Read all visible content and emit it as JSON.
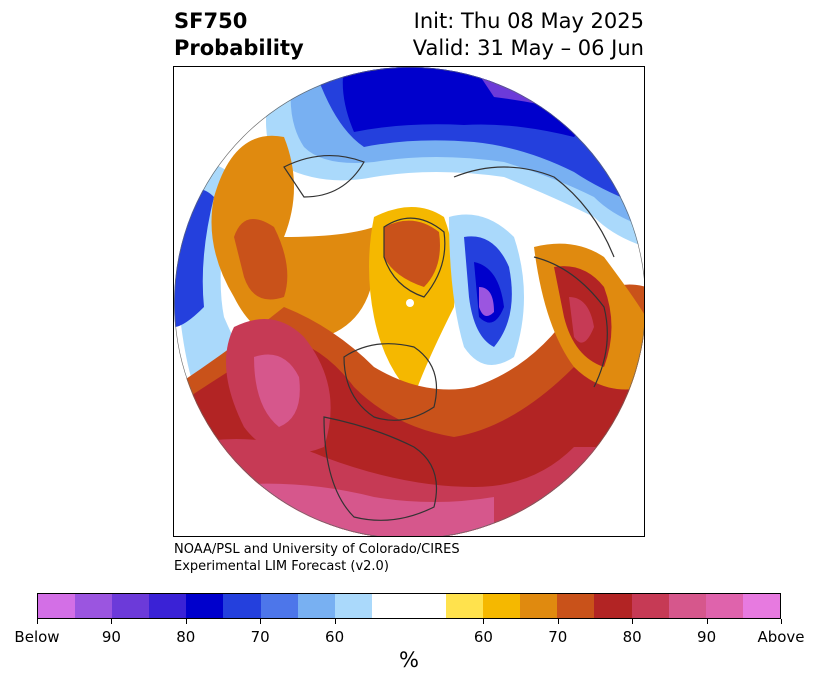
{
  "header": {
    "product_line1": "SF750",
    "product_line2": "Probability",
    "init_line": "Init: Thu 08 May 2025",
    "valid_line": "Valid: 31 May – 06 Jun"
  },
  "credit": {
    "line1": "NOAA/PSL and University of Colorado/CIRES",
    "line2": "Experimental LIM Forecast (v2.0)"
  },
  "colorbar": {
    "units": "%",
    "colors": [
      "#d36fe6",
      "#9b55e0",
      "#6c3ad9",
      "#3a22d6",
      "#0000cc",
      "#2440dd",
      "#4d76ea",
      "#78b0f2",
      "#aad9fb",
      "#ffffff",
      "#ffffff",
      "#ffe24d",
      "#f5b800",
      "#e08a0f",
      "#c9521a",
      "#b22424",
      "#c63a55",
      "#d6578c",
      "#df63ac",
      "#e77ae0"
    ],
    "tick_labels": [
      "Below",
      "90",
      "80",
      "70",
      "60",
      "60",
      "70",
      "80",
      "90",
      "Above"
    ]
  },
  "map": {
    "projection": "polar stereographic (North Pole)",
    "features": [
      "coastlines",
      "country borders",
      "US state borders"
    ]
  }
}
